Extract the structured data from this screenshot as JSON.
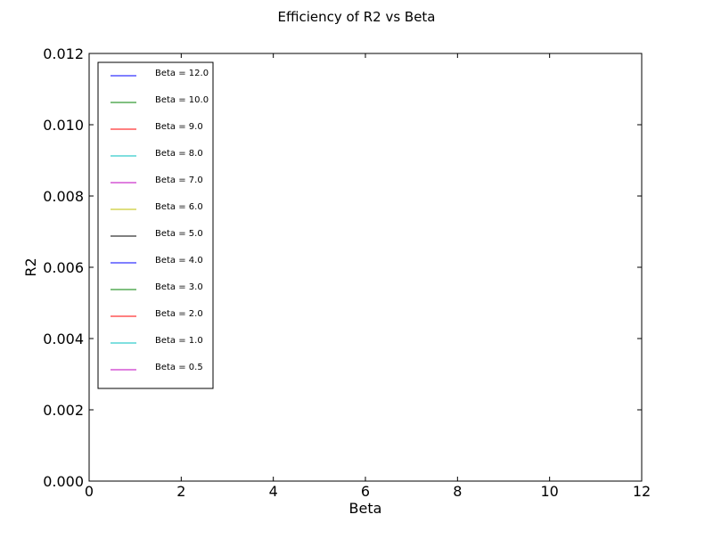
{
  "chart_data": {
    "type": "line",
    "title": "Efficiency of R2 vs Beta",
    "xlabel": "Beta",
    "ylabel": "R2",
    "xlim": [
      0,
      12
    ],
    "ylim": [
      0,
      0.012
    ],
    "x_ticks": [
      "0",
      "2",
      "4",
      "6",
      "8",
      "10",
      "12"
    ],
    "y_ticks": [
      "0.000",
      "0.002",
      "0.004",
      "0.006",
      "0.008",
      "0.010",
      "0.012"
    ],
    "grid": false,
    "legend_position": "top-left",
    "series": [
      {
        "name": "Beta = 12.0",
        "color": "#0000ff",
        "points": []
      },
      {
        "name": "Beta = 10.0",
        "color": "#008000",
        "points": []
      },
      {
        "name": "Beta = 9.0",
        "color": "#ff0000",
        "points": []
      },
      {
        "name": "Beta = 8.0",
        "color": "#00bfbf",
        "points": []
      },
      {
        "name": "Beta = 7.0",
        "color": "#bf00bf",
        "points": []
      },
      {
        "name": "Beta = 6.0",
        "color": "#bfbf00",
        "points": []
      },
      {
        "name": "Beta = 5.0",
        "color": "#000000",
        "points": []
      },
      {
        "name": "Beta = 4.0",
        "color": "#0000ff",
        "points": []
      },
      {
        "name": "Beta = 3.0",
        "color": "#008000",
        "points": []
      },
      {
        "name": "Beta = 2.0",
        "color": "#ff0000",
        "points": []
      },
      {
        "name": "Beta = 1.0",
        "color": "#00bfbf",
        "points": []
      },
      {
        "name": "Beta = 0.5",
        "color": "#bf00bf",
        "points": []
      }
    ]
  }
}
